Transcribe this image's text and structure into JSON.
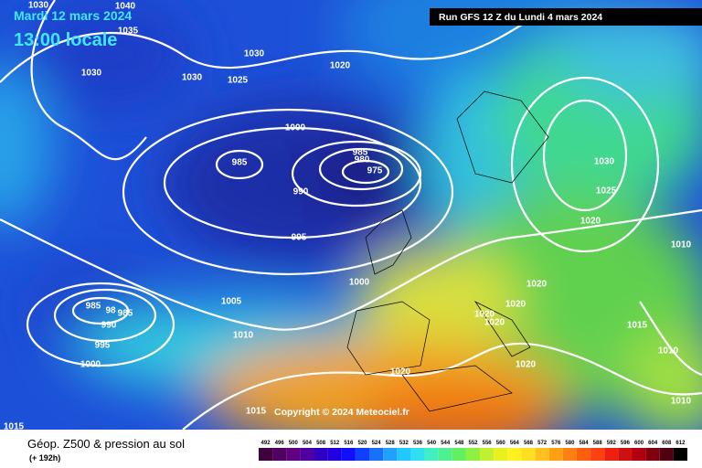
{
  "header": {
    "date": "Mardi 12 mars 2024",
    "time": "13:00 locale",
    "run": "Run GFS 12 Z du Lundi 4 mars 2024"
  },
  "isobar_labels": [
    "1030",
    "1040",
    "1035",
    "1030",
    "1030",
    "1030",
    "1025",
    "1020",
    "1000",
    "985",
    "985",
    "980",
    "975",
    "990",
    "995",
    "1000",
    "1005",
    "985",
    "98",
    "985",
    "990",
    "995",
    "1000",
    "1010",
    "1015",
    "1015",
    "1020",
    "1020",
    "1020",
    "1020",
    "1020",
    "1020",
    "1030",
    "1025",
    "1020",
    "1010",
    "1015",
    "1010",
    "1010"
  ],
  "copyright": "Copyright © 2024 Meteociel.fr",
  "footer": {
    "title": "Géop. Z500 & pression au sol",
    "subtitle": "(+ 192h)"
  },
  "legend": {
    "values": [
      492,
      496,
      500,
      504,
      508,
      512,
      516,
      520,
      524,
      528,
      532,
      536,
      540,
      544,
      548,
      552,
      556,
      560,
      564,
      568,
      572,
      576,
      580,
      584,
      588,
      592,
      596,
      600,
      604,
      608,
      612
    ]
  }
}
